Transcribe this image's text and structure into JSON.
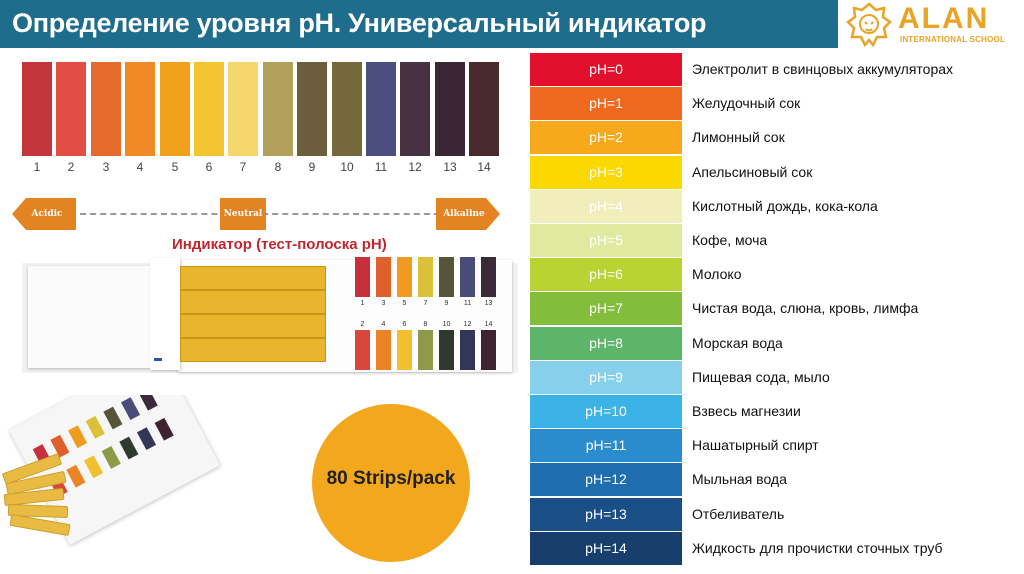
{
  "title": "Определение уровня рН. Универсальный индикатор",
  "logo": {
    "name": "ALAN",
    "subtitle": "INTERNATIONAL SCHOOL",
    "color": "#e9a325"
  },
  "header_color": "#1f6d8c",
  "color_chart": [
    {
      "label": "1",
      "color": "#c2353b"
    },
    {
      "label": "2",
      "color": "#e04e44"
    },
    {
      "label": "3",
      "color": "#e56c2c"
    },
    {
      "label": "4",
      "color": "#ef8a25"
    },
    {
      "label": "5",
      "color": "#f0a21f"
    },
    {
      "label": "6",
      "color": "#f3c530"
    },
    {
      "label": "7",
      "color": "#f6d76b"
    },
    {
      "label": "8",
      "color": "#b1a15b"
    },
    {
      "label": "9",
      "color": "#6b5e3c"
    },
    {
      "label": "10",
      "color": "#75683b"
    },
    {
      "label": "11",
      "color": "#4b4e7e"
    },
    {
      "label": "12",
      "color": "#473244"
    },
    {
      "label": "13",
      "color": "#3a2634"
    },
    {
      "label": "14",
      "color": "#482a2c"
    }
  ],
  "scale": {
    "acidic": "Acidic",
    "neutral": "Neutral",
    "alkaline": "Alkaline"
  },
  "indicator_caption": "Индикатор (тест-полоска рН)",
  "booklet": {
    "top_labels": [
      "1",
      "3",
      "5",
      "7",
      "9",
      "11",
      "13"
    ],
    "top_colors": [
      "#c5303a",
      "#e0602c",
      "#ef9a20",
      "#dcc03a",
      "#56553a",
      "#4a4c78",
      "#3a2a3a"
    ],
    "bottom_labels": [
      "2",
      "4",
      "6",
      "8",
      "10",
      "12",
      "14"
    ],
    "bottom_colors": [
      "#d9463c",
      "#ec8326",
      "#f2bf2e",
      "#8e9a4a",
      "#2f3a2e",
      "#343657",
      "#3e2430"
    ]
  },
  "circle_text": "80 Strips/pack",
  "ph_table": [
    {
      "ph": "pH=0",
      "desc": "Электролит в свинцовых аккумуляторах",
      "color": "#e3102d"
    },
    {
      "ph": "pH=1",
      "desc": "Желудочный сок",
      "color": "#ef6a1f"
    },
    {
      "ph": "pH=2",
      "desc": "Лимонный сок",
      "color": "#f8a91b"
    },
    {
      "ph": "pH=3",
      "desc": "Апельсиновый сок",
      "color": "#fbd900"
    },
    {
      "ph": "pH=4",
      "desc": "Кислотный дождь, кока-кола",
      "color": "#f1eebc"
    },
    {
      "ph": "pH=5",
      "desc": "Кофе, моча",
      "color": "#dfe9a0"
    },
    {
      "ph": "pH=6",
      "desc": "Молоко",
      "color": "#b9d332"
    },
    {
      "ph": "pH=7",
      "desc": "Чистая вода, слюна, кровь,  лимфа",
      "color": "#83bd3c"
    },
    {
      "ph": "pH=8",
      "desc": "Морская вода",
      "color": "#5db56a"
    },
    {
      "ph": "pH=9",
      "desc": "Пищевая сода, мыло",
      "color": "#87d0ec"
    },
    {
      "ph": "pH=10",
      "desc": "Взвесь магнезии",
      "color": "#3cb3e6"
    },
    {
      "ph": "pH=11",
      "desc": "Нашатырный спирт",
      "color": "#2b8ccd"
    },
    {
      "ph": "pH=12",
      "desc": "Мыльная вода",
      "color": "#1d6daf"
    },
    {
      "ph": "pH=13",
      "desc": "Отбеливатель",
      "color": "#1a4e86"
    },
    {
      "ph": "pH=14",
      "desc": "Жидкость для прочистки сточных труб",
      "color": "#173e6c"
    }
  ]
}
